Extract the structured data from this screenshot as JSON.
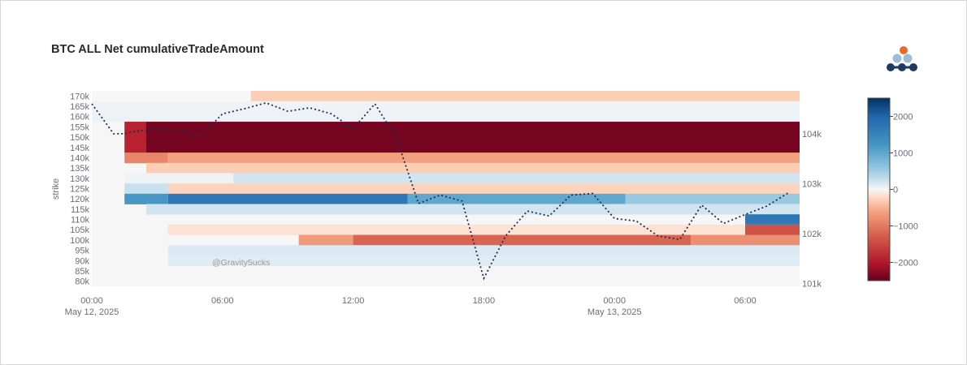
{
  "title": "BTC ALL Net cumulativeTradeAmount",
  "watermark": "@Gravity5ucks",
  "logo": "data-provider-logo-icon",
  "chart_data": [
    {
      "type": "heatmap",
      "ylabel": "strike",
      "y_ticks": [
        "80k",
        "85k",
        "90k",
        "95k",
        "100k",
        "105k",
        "110k",
        "115k",
        "120k",
        "125k",
        "130k",
        "135k",
        "140k",
        "145k",
        "150k",
        "155k",
        "160k",
        "165k",
        "170k"
      ],
      "x_ticks": [
        {
          "time": "00:00",
          "date": "May 12, 2025"
        },
        {
          "time": "06:00",
          "date": ""
        },
        {
          "time": "12:00",
          "date": ""
        },
        {
          "time": "18:00",
          "date": ""
        },
        {
          "time": "00:00",
          "date": "May 13, 2025"
        },
        {
          "time": "06:00",
          "date": ""
        }
      ],
      "x_range_hours": [
        0,
        32.5
      ],
      "y_range_k": [
        80,
        170
      ],
      "colorscale": "RdBu",
      "colorbar": {
        "ticks": [
          "2000",
          "1000",
          "0",
          "−1000",
          "−2000"
        ],
        "tick_values": [
          2000,
          1000,
          0,
          -1000,
          -2000
        ],
        "range": [
          -2500,
          2500
        ]
      },
      "bands": [
        {
          "strike_k": 170,
          "start_h": 0,
          "end_h": 7.3,
          "value": 0
        },
        {
          "strike_k": 170,
          "start_h": 7.3,
          "end_h": 32.5,
          "value": -300
        },
        {
          "strike_k": 165,
          "start_h": 0,
          "end_h": 32.5,
          "value": 40
        },
        {
          "strike_k": 160,
          "start_h": 0,
          "end_h": 32.5,
          "value": 60
        },
        {
          "strike_k": 155,
          "start_h": 1.5,
          "end_h": 2.5,
          "value": -1900
        },
        {
          "strike_k": 155,
          "start_h": 2.5,
          "end_h": 32.5,
          "value": -2400
        },
        {
          "strike_k": 150,
          "start_h": 1.5,
          "end_h": 2.5,
          "value": -1900
        },
        {
          "strike_k": 150,
          "start_h": 2.5,
          "end_h": 32.5,
          "value": -2400
        },
        {
          "strike_k": 145,
          "start_h": 1.5,
          "end_h": 2.5,
          "value": -1900
        },
        {
          "strike_k": 145,
          "start_h": 2.5,
          "end_h": 32.5,
          "value": -2400
        },
        {
          "strike_k": 140,
          "start_h": 1.5,
          "end_h": 3.5,
          "value": -900
        },
        {
          "strike_k": 140,
          "start_h": 3.5,
          "end_h": 32.5,
          "value": -650
        },
        {
          "strike_k": 135,
          "start_h": 2.5,
          "end_h": 32.5,
          "value": -300
        },
        {
          "strike_k": 130,
          "start_h": 1.5,
          "end_h": 6.5,
          "value": 40
        },
        {
          "strike_k": 130,
          "start_h": 6.5,
          "end_h": 32.5,
          "value": 200
        },
        {
          "strike_k": 125,
          "start_h": 1.5,
          "end_h": 3.5,
          "value": 250
        },
        {
          "strike_k": 125,
          "start_h": 3.5,
          "end_h": 32.5,
          "value": -250
        },
        {
          "strike_k": 120,
          "start_h": 1.5,
          "end_h": 3.5,
          "value": 1200
        },
        {
          "strike_k": 120,
          "start_h": 3.5,
          "end_h": 14.5,
          "value": 1700
        },
        {
          "strike_k": 120,
          "start_h": 14.5,
          "end_h": 24.5,
          "value": 1000
        },
        {
          "strike_k": 120,
          "start_h": 24.5,
          "end_h": 32.5,
          "value": 550
        },
        {
          "strike_k": 115,
          "start_h": 2.5,
          "end_h": 32.5,
          "value": 200
        },
        {
          "strike_k": 110,
          "start_h": 30,
          "end_h": 32.5,
          "value": 1700
        },
        {
          "strike_k": 105,
          "start_h": 3.5,
          "end_h": 32.5,
          "value": -150
        },
        {
          "strike_k": 105,
          "start_h": 30,
          "end_h": 32.5,
          "value": -1400
        },
        {
          "strike_k": 100,
          "start_h": 9.5,
          "end_h": 12,
          "value": -700
        },
        {
          "strike_k": 100,
          "start_h": 12,
          "end_h": 27.5,
          "value": -1200
        },
        {
          "strike_k": 100,
          "start_h": 27.5,
          "end_h": 32.5,
          "value": -800
        },
        {
          "strike_k": 95,
          "start_h": 3.5,
          "end_h": 32.5,
          "value": 150
        },
        {
          "strike_k": 90,
          "start_h": 3.5,
          "end_h": 32.5,
          "value": 120
        }
      ]
    },
    {
      "type": "line",
      "style": "dotted",
      "color": "#1f2d52",
      "y_axis": "right",
      "y_ticks": [
        "101k",
        "102k",
        "103k",
        "104k"
      ],
      "y_range_k": [
        100.94,
        104.86
      ],
      "x": [
        0,
        1,
        1.5,
        2,
        3,
        4,
        5,
        6,
        7,
        8,
        9,
        10,
        11,
        12,
        13,
        14,
        15,
        16,
        17,
        18,
        19,
        20,
        21,
        22,
        23,
        24,
        25,
        26,
        27,
        28,
        29,
        30,
        31,
        32
      ],
      "y": [
        104.6,
        104.0,
        104.0,
        104.05,
        104.1,
        104.05,
        103.95,
        104.4,
        104.5,
        104.62,
        104.45,
        104.52,
        104.4,
        104.1,
        104.6,
        103.9,
        102.6,
        102.77,
        102.65,
        101.1,
        101.95,
        102.45,
        102.35,
        102.77,
        102.8,
        102.3,
        102.25,
        101.95,
        101.88,
        102.57,
        102.2,
        102.38,
        102.55,
        102.82
      ]
    }
  ]
}
